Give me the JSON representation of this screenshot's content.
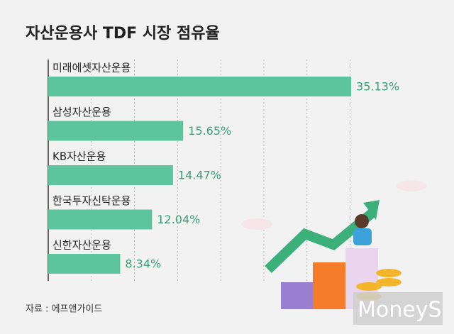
{
  "chart_data": {
    "type": "barh",
    "title": "자산운용사 TDF 시장 점유율",
    "categories": [
      "미래에셋자산운용",
      "삼성자산운용",
      "KB자산운용",
      "한국투자신탁운용",
      "신한자산운용"
    ],
    "values": [
      35.13,
      15.65,
      14.47,
      12.04,
      8.34
    ],
    "value_labels": [
      "35.13%",
      "15.65%",
      "14.47%",
      "12.04%",
      "8.34%"
    ],
    "color": "#5cc59f",
    "label_color": "#3a9f78",
    "xlim": [
      0,
      45
    ],
    "xticks": [
      0,
      5,
      10,
      15,
      20,
      25,
      30,
      35
    ],
    "grid": true,
    "source": "자료 : 에프앤가이드",
    "watermark": "MoneyS"
  }
}
